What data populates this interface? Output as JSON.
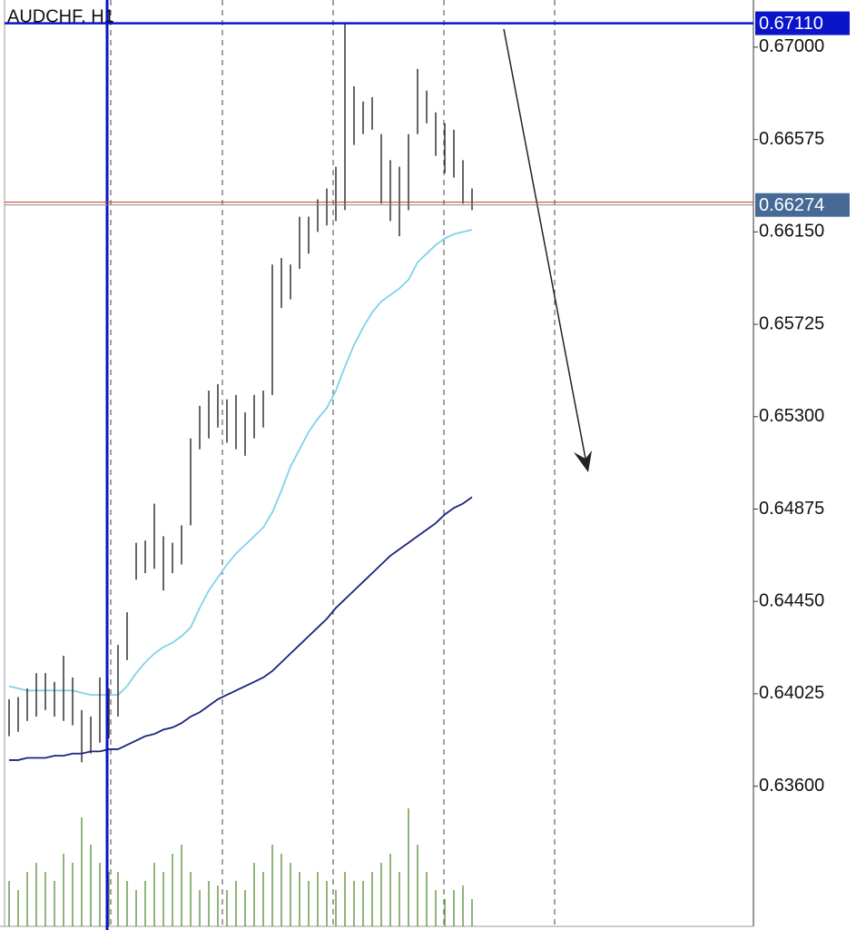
{
  "chart_data": {
    "type": "hl_bars",
    "title": "AUDCHF, H1",
    "ylim": [
      0.62955,
      0.67217
    ],
    "yticks": [
      {
        "value": 0.67,
        "label": "0.67000"
      },
      0.66575,
      {
        "value": 0.6615,
        "label": "0.66150"
      },
      0.65725,
      {
        "value": 0.653,
        "label": "0.65300"
      },
      0.64875,
      {
        "value": 0.6445,
        "label": "0.64450"
      },
      0.64025,
      {
        "value": 0.636,
        "label": "0.63600"
      }
    ],
    "bar_color": "#333333",
    "high": [
      0.64,
      0.6401,
      0.6405,
      0.6412,
      0.6412,
      0.6408,
      0.642,
      0.641,
      0.6395,
      0.6392,
      0.641,
      0.6405,
      0.6425,
      0.644,
      0.6472,
      0.6473,
      0.649,
      0.6475,
      0.6472,
      0.648,
      0.652,
      0.6535,
      0.6542,
      0.6545,
      0.6538,
      0.654,
      0.6532,
      0.654,
      0.6542,
      0.66,
      0.6603,
      0.66,
      0.6622,
      0.6622,
      0.663,
      0.6635,
      0.6645,
      0.6711,
      0.6682,
      0.6675,
      0.6677,
      0.666,
      0.6648,
      0.6645,
      0.666,
      0.669,
      0.668,
      0.667,
      0.6665,
      0.6662,
      0.6648,
      0.6635
    ],
    "low": [
      0.6383,
      0.6385,
      0.639,
      0.6392,
      0.6395,
      0.6392,
      0.639,
      0.6388,
      0.6371,
      0.6375,
      0.638,
      0.6382,
      0.6392,
      0.6418,
      0.6455,
      0.6458,
      0.646,
      0.645,
      0.6458,
      0.6462,
      0.648,
      0.6515,
      0.652,
      0.6525,
      0.6518,
      0.6515,
      0.6512,
      0.652,
      0.6525,
      0.654,
      0.658,
      0.6584,
      0.6598,
      0.6605,
      0.6615,
      0.6618,
      0.662,
      0.6625,
      0.6655,
      0.666,
      0.6662,
      0.6628,
      0.662,
      0.6613,
      0.6625,
      0.666,
      0.6665,
      0.665,
      0.6642,
      0.664,
      0.6628,
      0.6625
    ],
    "series": [
      {
        "color": "#7fd3e6",
        "values": [
          0.6406,
          0.6405,
          0.6404,
          0.6404,
          0.6404,
          0.6404,
          0.6404,
          0.6404,
          0.6403,
          0.6402,
          0.6402,
          0.6402,
          0.6402,
          0.6406,
          0.6412,
          0.6417,
          0.6421,
          0.6424,
          0.6426,
          0.6429,
          0.6433,
          0.6442,
          0.645,
          0.6456,
          0.6462,
          0.6467,
          0.6471,
          0.6475,
          0.6479,
          0.6486,
          0.6496,
          0.6507,
          0.6515,
          0.6523,
          0.6529,
          0.6534,
          0.6542,
          0.6553,
          0.6563,
          0.6571,
          0.6578,
          0.6583,
          0.6586,
          0.6589,
          0.6593,
          0.6601,
          0.6605,
          0.6609,
          0.6612,
          0.6614,
          0.6615,
          0.6616
        ]
      },
      {
        "color": "#1a237e",
        "values": [
          0.6372,
          0.6372,
          0.6373,
          0.6373,
          0.6373,
          0.6374,
          0.6374,
          0.6375,
          0.6375,
          0.6376,
          0.6376,
          0.6377,
          0.6377,
          0.6379,
          0.6381,
          0.6383,
          0.6384,
          0.6386,
          0.6387,
          0.6389,
          0.6392,
          0.6394,
          0.6397,
          0.64,
          0.6402,
          0.6404,
          0.6406,
          0.6408,
          0.641,
          0.6413,
          0.6417,
          0.6421,
          0.6425,
          0.6429,
          0.6433,
          0.6437,
          0.6442,
          0.6446,
          0.645,
          0.6454,
          0.6458,
          0.6462,
          0.6466,
          0.6469,
          0.6472,
          0.6475,
          0.6478,
          0.6481,
          0.6485,
          0.6488,
          0.649,
          0.6493
        ]
      }
    ],
    "volume": [
      50,
      40,
      60,
      70,
      60,
      50,
      80,
      70,
      120,
      90,
      70,
      60,
      60,
      50,
      40,
      50,
      70,
      60,
      80,
      90,
      60,
      40,
      50,
      45,
      40,
      50,
      40,
      70,
      60,
      90,
      80,
      70,
      60,
      50,
      60,
      50,
      40,
      60,
      50,
      50,
      60,
      70,
      80,
      60,
      130,
      90,
      60,
      40,
      30,
      40,
      45,
      30
    ],
    "volume_lim": [
      0,
      160
    ],
    "volume_color": "#6b9a4e",
    "price_lines": [
      {
        "value": 0.6711,
        "label": "0.67110",
        "color": "#0a14c8"
      },
      {
        "value": 0.66287,
        "color": "#c0392b"
      },
      {
        "value": 0.66274,
        "label": "0.66274",
        "color": "#8a8a8a",
        "box_color": "#466a95"
      }
    ]
  }
}
